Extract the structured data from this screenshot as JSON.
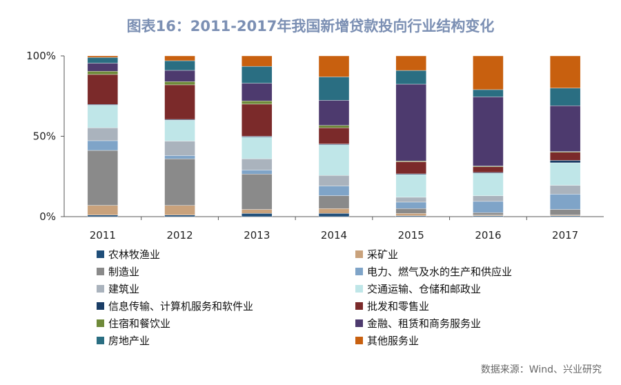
{
  "chart_data": {
    "type": "bar",
    "stacked": true,
    "title": "图表16：2011-2017年我国新增贷款投向行业结构变化",
    "source": "数据来源：Wind、兴业研究",
    "categories": [
      "2011",
      "2012",
      "2013",
      "2014",
      "2015",
      "2016",
      "2017"
    ],
    "y_ticks": [
      "0%",
      "50%",
      "100%"
    ],
    "ylim": [
      0,
      100
    ],
    "legend_position": "bottom",
    "series": [
      {
        "name": "农林牧渔业",
        "color": "#1f4e79",
        "values": [
          1,
          1,
          2,
          2,
          0.5,
          0.5,
          0.5
        ]
      },
      {
        "name": "采矿业",
        "color": "#c9a27c",
        "values": [
          6,
          6,
          2.5,
          3,
          1.5,
          0.5,
          0.5
        ]
      },
      {
        "name": "制造业",
        "color": "#8a8a8a",
        "values": [
          34,
          29,
          22,
          8,
          3,
          1.5,
          3.5
        ]
      },
      {
        "name": "电力、燃气及水的生产和供应业",
        "color": "#7fa4c8",
        "values": [
          6,
          2,
          2.5,
          6,
          4,
          7,
          9.5
        ]
      },
      {
        "name": "建筑业",
        "color": "#aab3bd",
        "values": [
          8,
          9,
          7,
          6.5,
          3,
          3.5,
          5.5
        ]
      },
      {
        "name": "交通运输、仓储和邮政业",
        "color": "#bfe6e8",
        "values": [
          14,
          13,
          13.5,
          19,
          14,
          14,
          14
        ]
      },
      {
        "name": "信息传输、计算机服务和软件业",
        "color": "#1a3d66",
        "values": [
          0.5,
          0.5,
          0.5,
          0.5,
          0.5,
          0.5,
          1.5
        ]
      },
      {
        "name": "批发和零售业",
        "color": "#7b2a2a",
        "values": [
          18.5,
          21.5,
          20,
          10,
          7.5,
          3.5,
          5
        ]
      },
      {
        "name": "住宿和餐饮业",
        "color": "#6f8a3a",
        "values": [
          2,
          2,
          2,
          1.5,
          0.5,
          0.5,
          0.5
        ]
      },
      {
        "name": "金融、租赁和商务服务业",
        "color": "#4d3a6e",
        "values": [
          5,
          7,
          11,
          15.5,
          47.5,
          43,
          28.5
        ]
      },
      {
        "name": "房地产业",
        "color": "#2a6e82",
        "values": [
          3.5,
          6,
          10.5,
          14.5,
          8.5,
          4.5,
          11
        ]
      },
      {
        "name": "其他服务业",
        "color": "#c8600f",
        "values": [
          1,
          3,
          6.5,
          13,
          9,
          21,
          20
        ]
      }
    ]
  }
}
